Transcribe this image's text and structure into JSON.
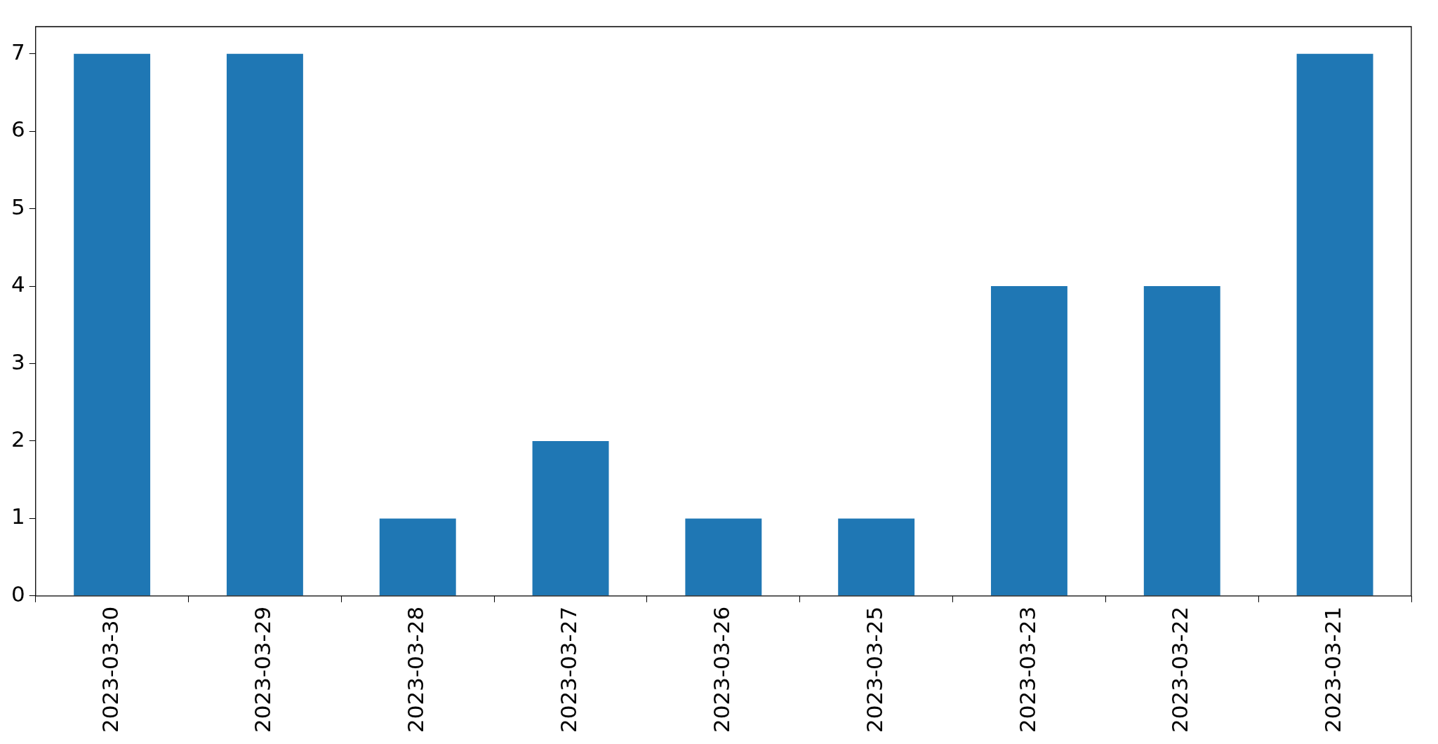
{
  "chart_data": {
    "type": "bar",
    "categories": [
      "2023-03-30",
      "2023-03-29",
      "2023-03-28",
      "2023-03-27",
      "2023-03-26",
      "2023-03-25",
      "2023-03-23",
      "2023-03-22",
      "2023-03-21"
    ],
    "values": [
      7,
      7,
      1,
      2,
      1,
      1,
      4,
      4,
      7
    ],
    "color": "#1f77b4",
    "ylim": [
      0,
      7.35
    ],
    "yticks": [
      0,
      1,
      2,
      3,
      4,
      5,
      6,
      7
    ],
    "grid": false,
    "legend": false
  }
}
